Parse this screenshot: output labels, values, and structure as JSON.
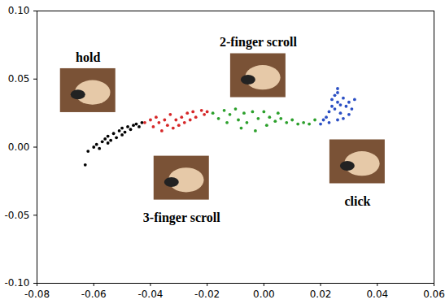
{
  "chart_data": {
    "type": "scatter",
    "xlim": [
      -0.08,
      0.06
    ],
    "ylim": [
      -0.1,
      0.1
    ],
    "xticks": [
      {
        "value": -0.08,
        "label": "-0.08"
      },
      {
        "value": -0.06,
        "label": "-0.06"
      },
      {
        "value": -0.04,
        "label": "-0.04"
      },
      {
        "value": -0.02,
        "label": "-0.02"
      },
      {
        "value": 0,
        "label": "0.00"
      },
      {
        "value": 0.02,
        "label": "0.02"
      },
      {
        "value": 0.04,
        "label": "0.04"
      },
      {
        "value": 0.06,
        "label": "0.06"
      }
    ],
    "yticks": [
      {
        "value": -0.1,
        "label": "-0.10"
      },
      {
        "value": -0.05,
        "label": "-0.05"
      },
      {
        "value": 0,
        "label": "0.00"
      },
      {
        "value": 0.05,
        "label": "0.05"
      },
      {
        "value": 0.1,
        "label": "0.10"
      }
    ],
    "grid": false,
    "series": [
      {
        "color": "#000000",
        "marker": "circle",
        "x": [
          -0.063,
          -0.062,
          -0.06,
          -0.059,
          -0.058,
          -0.057,
          -0.056,
          -0.055,
          -0.055,
          -0.054,
          -0.053,
          -0.052,
          -0.051,
          -0.05,
          -0.05,
          -0.049,
          -0.048,
          -0.047,
          -0.046,
          -0.045,
          -0.044,
          -0.043
        ],
        "values": [
          -0.013,
          -0.003,
          0.0,
          0.002,
          -0.001,
          0.004,
          0.006,
          0.003,
          0.008,
          0.005,
          0.01,
          0.007,
          0.012,
          0.009,
          0.014,
          0.011,
          0.015,
          0.013,
          0.016,
          0.017,
          0.015,
          0.018
        ]
      },
      {
        "color": "#d62728",
        "marker": "circle",
        "x": [
          -0.042,
          -0.04,
          -0.039,
          -0.038,
          -0.037,
          -0.036,
          -0.035,
          -0.034,
          -0.033,
          -0.032,
          -0.031,
          -0.03,
          -0.029,
          -0.028,
          -0.027,
          -0.026,
          -0.025,
          -0.024,
          -0.022,
          -0.021,
          -0.02
        ],
        "values": [
          0.018,
          0.02,
          0.015,
          0.022,
          0.018,
          0.012,
          0.02,
          0.016,
          0.024,
          0.014,
          0.02,
          0.016,
          0.022,
          0.018,
          0.025,
          0.02,
          0.026,
          0.022,
          0.027,
          0.024,
          0.026
        ]
      },
      {
        "color": "#2ca02c",
        "marker": "circle",
        "x": [
          -0.018,
          -0.016,
          -0.014,
          -0.013,
          -0.012,
          -0.01,
          -0.009,
          -0.008,
          -0.007,
          -0.006,
          -0.004,
          -0.003,
          -0.002,
          0.0,
          0.001,
          0.002,
          0.004,
          0.005,
          0.006,
          0.008,
          0.01,
          0.012,
          0.014,
          0.016,
          0.018
        ],
        "values": [
          0.025,
          0.021,
          0.027,
          0.018,
          0.024,
          0.028,
          0.02,
          0.014,
          0.025,
          0.018,
          0.026,
          0.012,
          0.021,
          0.026,
          0.016,
          0.022,
          0.019,
          0.025,
          0.021,
          0.018,
          0.02,
          0.017,
          0.018,
          0.017,
          0.02
        ]
      },
      {
        "color": "#2b4fc4",
        "marker": "circle",
        "x": [
          0.02,
          0.021,
          0.022,
          0.023,
          0.023,
          0.024,
          0.024,
          0.025,
          0.025,
          0.026,
          0.026,
          0.026,
          0.027,
          0.027,
          0.028,
          0.028,
          0.029,
          0.03,
          0.03,
          0.031,
          0.032,
          0.026
        ],
        "values": [
          0.017,
          0.02,
          0.022,
          0.018,
          0.026,
          0.03,
          0.035,
          0.028,
          0.038,
          0.033,
          0.043,
          0.04,
          0.025,
          0.031,
          0.021,
          0.036,
          0.03,
          0.024,
          0.033,
          0.028,
          0.035,
          0.02
        ]
      }
    ],
    "annotations": [
      {
        "text": "hold",
        "x": -0.062,
        "y": 0.066
      },
      {
        "text": "2-finger scroll",
        "x": -0.002,
        "y": 0.077
      },
      {
        "text": "3-finger scroll",
        "x": -0.029,
        "y": -0.052
      },
      {
        "text": "click",
        "x": 0.033,
        "y": -0.04
      }
    ]
  }
}
